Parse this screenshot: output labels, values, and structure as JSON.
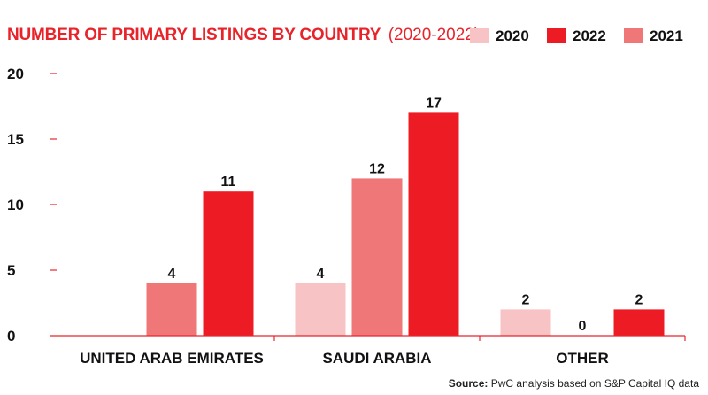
{
  "colors": {
    "accent": "#e8242b",
    "axis": "#e8242b",
    "text": "#111111"
  },
  "chart_data": {
    "type": "bar",
    "title": "NUMBER OF PRIMARY LISTINGS BY COUNTRY",
    "subtitle": "(2020-2022)",
    "categories": [
      "UNITED ARAB EMIRATES",
      "SAUDI ARABIA",
      "OTHER"
    ],
    "series": [
      {
        "name": "2020",
        "color": "#f7c3c4",
        "values": [
          0,
          4,
          2
        ]
      },
      {
        "name": "2021",
        "color": "#f07777",
        "values": [
          4,
          12,
          0
        ]
      },
      {
        "name": "2022",
        "color": "#ed1c24",
        "values": [
          11,
          17,
          2
        ]
      }
    ],
    "value_labels": [
      [
        "",
        "4",
        "2"
      ],
      [
        "4",
        "12",
        "0"
      ],
      [
        "11",
        "17",
        "2"
      ]
    ],
    "legend_order": [
      "2020",
      "2022",
      "2021"
    ],
    "legend_placement": "top-right",
    "yticks": [
      0,
      5,
      10,
      15,
      20
    ],
    "ylim": [
      0,
      20
    ],
    "grid": false
  },
  "source": {
    "label": "Source:",
    "text": "PwC analysis based on S&P Capital IQ data"
  }
}
